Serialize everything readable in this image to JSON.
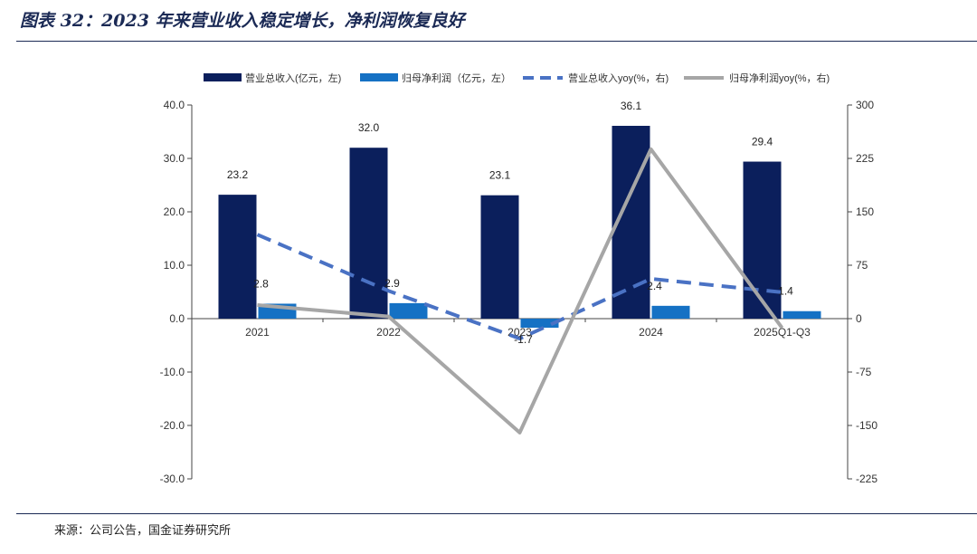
{
  "header": {
    "title": "图表 32：2023 年来营业收入稳定增长，净利润恢复良好"
  },
  "footer": {
    "source": "来源：公司公告，国金证券研究所"
  },
  "colors": {
    "revenue_bar": "#0b1f5c",
    "profit_bar": "#1571c4",
    "revenue_yoy_line": "#4a72c4",
    "profit_yoy_line": "#a6a6a6",
    "axis": "#444444",
    "rule": "#1b2a55"
  },
  "chart_data": {
    "type": "bar",
    "categories": [
      "2021",
      "2022",
      "2023",
      "2024",
      "2025Q1-Q3"
    ],
    "series": [
      {
        "name": "营业总收入(亿元，左)",
        "type": "bar",
        "axis": "left",
        "values": [
          23.2,
          32.0,
          23.1,
          36.1,
          29.4
        ],
        "labels": [
          "23.2",
          "32.0",
          "23.1",
          "36.1",
          "29.4"
        ]
      },
      {
        "name": "归母净利润（亿元，左）",
        "type": "bar",
        "axis": "left",
        "values": [
          2.8,
          2.9,
          -1.7,
          2.4,
          1.4
        ],
        "labels": [
          "2.8",
          "2.9",
          "-1.7",
          "2.4",
          "1.4"
        ]
      },
      {
        "name": "营业总收入yoy(%，右)",
        "type": "line",
        "style": "dashed",
        "axis": "right",
        "values": [
          118,
          39,
          -28,
          56,
          37
        ]
      },
      {
        "name": "归母净利润yoy(%，右)",
        "type": "line",
        "style": "solid",
        "axis": "right",
        "values": [
          19,
          3,
          -160,
          238,
          -13
        ]
      }
    ],
    "left_axis": {
      "min": -30,
      "max": 40,
      "ticks": [
        "40.0",
        "30.0",
        "20.0",
        "10.0",
        "0.0",
        "-10.0",
        "-20.0",
        "-30.0"
      ]
    },
    "right_axis": {
      "min": -225,
      "max": 300,
      "ticks": [
        "300",
        "225",
        "150",
        "75",
        "0",
        "-75",
        "-150",
        "-225"
      ]
    },
    "legend_position": "top",
    "grid": false
  }
}
